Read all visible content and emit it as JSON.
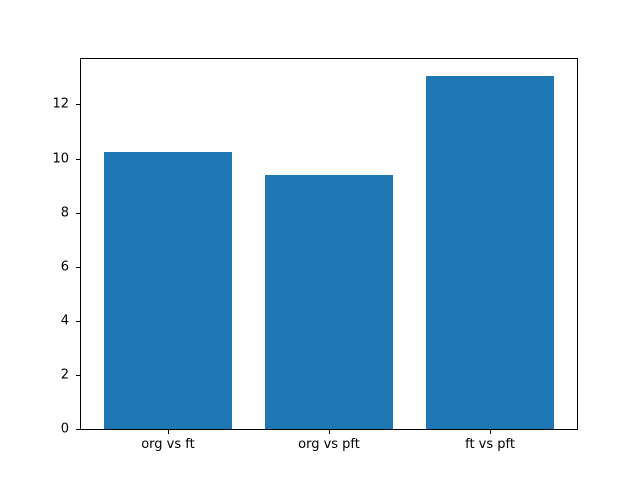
{
  "chart_data": {
    "type": "bar",
    "title": "",
    "xlabel": "",
    "ylabel": "",
    "categories": [
      "org vs ft",
      "org vs pft",
      "ft vs pft"
    ],
    "values": [
      10.25,
      9.4,
      13.05
    ],
    "yticks": [
      0,
      2,
      4,
      6,
      8,
      10,
      12
    ],
    "ylim": [
      0,
      13.68
    ],
    "xlim": [
      -0.54,
      2.54
    ],
    "bar_width": 0.8,
    "bar_color": "#1f77b4",
    "grid": false,
    "legend": "none"
  },
  "figure": {
    "background": "#ffffff",
    "spine_color": "#000000",
    "text_color": "#000000"
  }
}
